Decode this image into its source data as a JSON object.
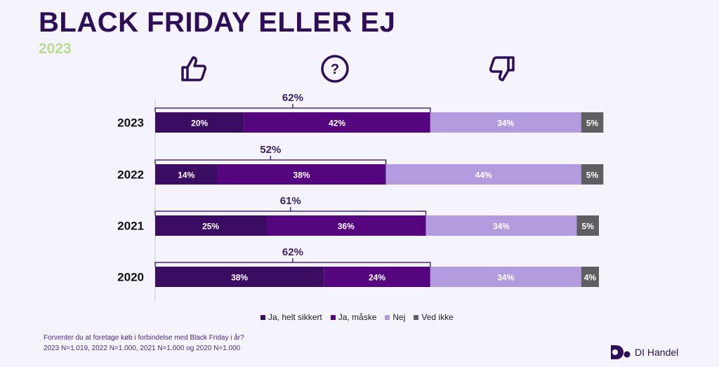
{
  "title": "BLACK FRIDAY ELLER EJ",
  "subtitle": "2023",
  "icons": [
    "thumbs-up-icon",
    "question-icon",
    "thumbs-down-icon"
  ],
  "chart_data": {
    "type": "bar",
    "orientation": "horizontal-stacked",
    "categories": [
      "2023",
      "2022",
      "2021",
      "2020"
    ],
    "series": [
      {
        "name": "Ja, helt sikkert",
        "color": "#3a0d62",
        "values": [
          20,
          14,
          25,
          38
        ]
      },
      {
        "name": "Ja, måske",
        "color": "#55067f",
        "values": [
          42,
          38,
          36,
          24
        ]
      },
      {
        "name": "Nej",
        "color": "#b39be0",
        "values": [
          34,
          44,
          34,
          34
        ]
      },
      {
        "name": "Ved ikke",
        "color": "#5f5f63",
        "values": [
          5,
          5,
          5,
          4
        ]
      }
    ],
    "data_labels": [
      [
        "20%",
        "42%",
        "34%",
        "5%"
      ],
      [
        "14%",
        "38%",
        "44%",
        "5%"
      ],
      [
        "25%",
        "36%",
        "34%",
        "5%"
      ],
      [
        "38%",
        "24%",
        "34%",
        "4%"
      ]
    ],
    "bracket_labels": [
      "62%",
      "52%",
      "61%",
      "62%"
    ],
    "legend": "bottom"
  },
  "footnote": {
    "question": "Forventer du at foretage køb i forbindelse med Black Friday i år?",
    "sample": "2023 N=1.019, 2022 N=1.000, 2021 N=1.000 og 2020 N=1.000"
  },
  "brand": "DI Handel"
}
